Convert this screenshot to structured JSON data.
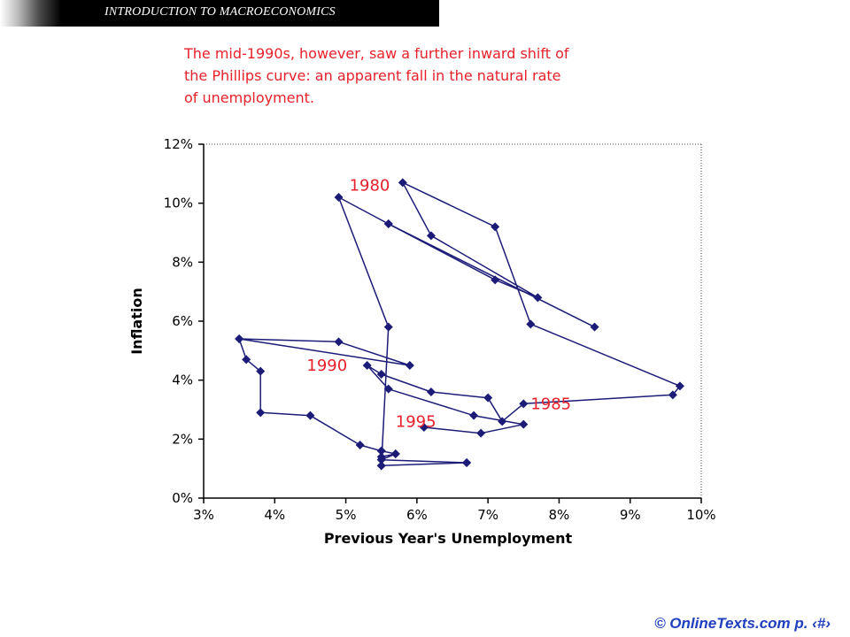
{
  "header": {
    "title": "INTRODUCTION TO MACROECONOMICS"
  },
  "caption": "The mid-1990s, however, saw a further inward shift of\nthe Phillips curve: an apparent fall in the natural rate\nof unemployment.",
  "footer": {
    "text": "© OnlineTexts.com   p. ‹#›"
  },
  "colors": {
    "line": "#1c1c78",
    "marker": "#1c1c78",
    "annotation": "#e8212b",
    "caption": "#e8212b",
    "footer": "#1f3fbf"
  },
  "chart_data": {
    "type": "line",
    "xlabel": "Previous Year's Unemployment",
    "ylabel": "Inflation",
    "xlim": [
      3,
      10
    ],
    "ylim": [
      0,
      12
    ],
    "x_ticks": [
      3,
      4,
      5,
      6,
      7,
      8,
      9,
      10
    ],
    "y_ticks": [
      0,
      2,
      4,
      6,
      8,
      10,
      12
    ],
    "x_tick_labels": [
      "3%",
      "4%",
      "5%",
      "6%",
      "7%",
      "8%",
      "9%",
      "10%"
    ],
    "y_tick_labels": [
      "0%",
      "2%",
      "4%",
      "6%",
      "8%",
      "10%",
      "12%"
    ],
    "grid": false,
    "series": [
      {
        "points": [
          [
            3.5,
            5.4
          ],
          [
            4.9,
            5.3
          ],
          [
            5.9,
            4.5
          ],
          [
            3.5,
            5.4
          ],
          [
            3.6,
            4.7
          ],
          [
            3.8,
            4.3
          ],
          [
            3.8,
            2.9
          ],
          [
            4.5,
            2.8
          ],
          [
            5.2,
            1.8
          ],
          [
            5.5,
            1.6
          ],
          [
            5.7,
            1.5
          ],
          [
            5.5,
            1.3
          ],
          [
            6.7,
            1.2
          ],
          [
            5.5,
            1.1
          ],
          [
            5.5,
            1.4
          ],
          [
            5.7,
            1.5
          ],
          [
            5.5,
            1.6
          ],
          [
            5.5,
            1.3
          ],
          [
            6.7,
            1.2
          ],
          [
            5.5,
            1.1
          ],
          [
            5.6,
            5.8
          ],
          [
            4.9,
            10.2
          ],
          [
            5.6,
            9.3
          ],
          [
            7.1,
            7.4
          ],
          [
            7.7,
            6.8
          ],
          [
            6.2,
            8.9
          ],
          [
            5.8,
            10.7
          ],
          [
            7.1,
            9.2
          ],
          [
            7.6,
            5.9
          ],
          [
            9.7,
            3.8
          ],
          [
            9.6,
            3.5
          ],
          [
            7.5,
            3.2
          ],
          [
            7.2,
            2.6
          ],
          [
            7.0,
            3.4
          ],
          [
            6.2,
            3.6
          ],
          [
            5.5,
            4.2
          ],
          [
            5.3,
            4.5
          ],
          [
            5.6,
            3.7
          ],
          [
            6.8,
            2.8
          ],
          [
            7.5,
            2.5
          ],
          [
            6.9,
            2.2
          ],
          [
            6.1,
            2.4
          ]
        ]
      },
      {
        "points": [
          [
            5.6,
            9.3
          ],
          [
            8.5,
            5.8
          ]
        ]
      }
    ],
    "annotations": [
      {
        "text": "1980",
        "x": 5.05,
        "y": 10.6
      },
      {
        "text": "1990",
        "x": 4.45,
        "y": 4.5
      },
      {
        "text": "1985",
        "x": 7.6,
        "y": 3.2
      },
      {
        "text": "1995",
        "x": 5.7,
        "y": 2.6
      }
    ]
  }
}
